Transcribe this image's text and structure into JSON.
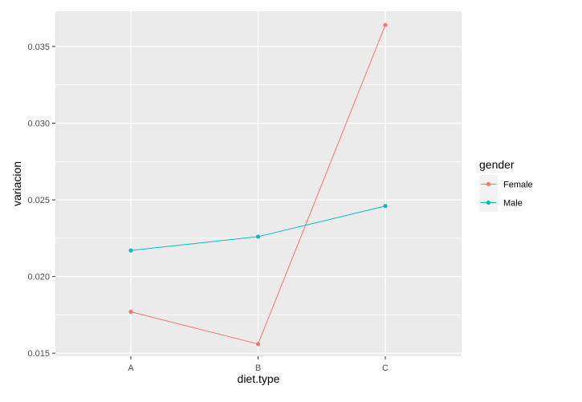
{
  "chart_data": {
    "type": "line",
    "categories": [
      "A",
      "B",
      "C"
    ],
    "xlabel": "diet.type",
    "ylabel": "variacion",
    "ylim": [
      0.0148,
      0.0373
    ],
    "y_ticks": [
      0.015,
      0.02,
      0.025,
      0.03,
      0.035
    ],
    "y_tick_labels": [
      "0.015",
      "0.020",
      "0.025",
      "0.030",
      "0.035"
    ],
    "grid": true,
    "legend": {
      "title": "gender",
      "position": "right"
    },
    "series": [
      {
        "name": "Female",
        "color": "#F8766D",
        "values": [
          0.0177,
          0.0156,
          0.0364
        ]
      },
      {
        "name": "Male",
        "color": "#00BFC4",
        "values": [
          0.0217,
          0.0226,
          0.0246
        ]
      }
    ]
  }
}
